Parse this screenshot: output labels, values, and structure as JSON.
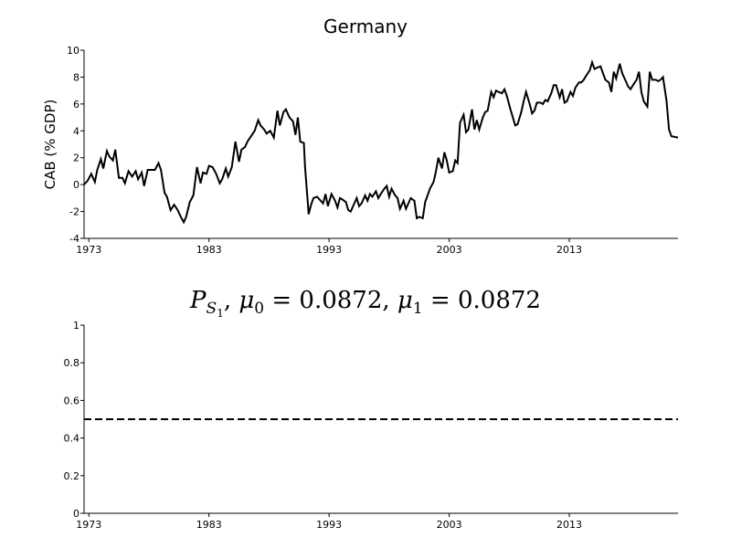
{
  "chart_data": [
    {
      "type": "line",
      "title": "Germany",
      "y_label": "CAB (% GDP)",
      "color": "#000000",
      "linestyle": "solid",
      "xlim": [
        1972.6,
        2022.05
      ],
      "xticks": [
        1973,
        1983,
        1993,
        2003,
        2013
      ],
      "ylim": [
        -4,
        10
      ],
      "yticks": [
        -4,
        -2,
        0,
        2,
        4,
        6,
        8,
        10
      ],
      "x": [
        1972.6,
        1972.9,
        1973.2,
        1973.5,
        1973.7,
        1974.0,
        1974.2,
        1974.5,
        1974.7,
        1975.0,
        1975.2,
        1975.5,
        1975.8,
        1976.0,
        1976.3,
        1976.6,
        1976.9,
        1977.1,
        1977.4,
        1977.6,
        1977.9,
        1978.2,
        1978.5,
        1978.8,
        1979.0,
        1979.3,
        1979.5,
        1979.8,
        1980.1,
        1980.4,
        1980.6,
        1980.9,
        1981.1,
        1981.4,
        1981.7,
        1982.0,
        1982.3,
        1982.5,
        1982.8,
        1983.0,
        1983.3,
        1983.6,
        1983.9,
        1984.1,
        1984.4,
        1984.6,
        1984.9,
        1985.2,
        1985.5,
        1985.7,
        1986.0,
        1986.2,
        1986.5,
        1986.8,
        1987.1,
        1987.3,
        1987.6,
        1987.8,
        1988.1,
        1988.4,
        1988.7,
        1988.9,
        1989.2,
        1989.4,
        1989.7,
        1990.0,
        1990.2,
        1990.4,
        1990.6,
        1990.9,
        1991.0,
        1991.3,
        1991.5,
        1991.7,
        1992.0,
        1992.2,
        1992.5,
        1992.7,
        1992.9,
        1993.2,
        1993.5,
        1993.7,
        1993.9,
        1994.1,
        1994.4,
        1994.6,
        1994.8,
        1995.1,
        1995.3,
        1995.5,
        1995.7,
        1996.0,
        1996.2,
        1996.4,
        1996.6,
        1996.9,
        1997.1,
        1997.3,
        1997.6,
        1997.8,
        1998.0,
        1998.2,
        1998.5,
        1998.7,
        1998.9,
        1999.2,
        1999.4,
        1999.6,
        1999.8,
        2000.1,
        2000.3,
        2000.5,
        2000.8,
        2001.0,
        2001.2,
        2001.4,
        2001.7,
        2001.9,
        2002.1,
        2002.4,
        2002.6,
        2002.8,
        2003.0,
        2003.3,
        2003.5,
        2003.7,
        2003.9,
        2004.2,
        2004.4,
        2004.6,
        2004.9,
        2005.1,
        2005.3,
        2005.5,
        2005.8,
        2006.0,
        2006.2,
        2006.5,
        2006.7,
        2006.9,
        2007.1,
        2007.4,
        2007.6,
        2007.8,
        2008.1,
        2008.3,
        2008.5,
        2008.7,
        2009.0,
        2009.2,
        2009.4,
        2009.7,
        2009.9,
        2010.1,
        2010.3,
        2010.6,
        2010.8,
        2011.0,
        2011.2,
        2011.5,
        2011.7,
        2011.9,
        2012.2,
        2012.4,
        2012.6,
        2012.8,
        2013.1,
        2013.3,
        2013.5,
        2013.8,
        2014.0,
        2014.2,
        2014.4,
        2014.7,
        2014.9,
        2015.1,
        2015.3,
        2015.6,
        2015.8,
        2016.0,
        2016.3,
        2016.5,
        2016.7,
        2016.9,
        2017.2,
        2017.4,
        2017.6,
        2017.9,
        2018.1,
        2018.3,
        2018.6,
        2018.8,
        2019.0,
        2019.2,
        2019.5,
        2019.7,
        2019.9,
        2020.2,
        2020.4,
        2020.6,
        2020.8,
        2021.1,
        2021.3,
        2021.5,
        2022.05
      ],
      "values": [
        0,
        0.3,
        0.8,
        0.2,
        1.1,
        1.9,
        1.2,
        2.5,
        2.1,
        1.8,
        2.6,
        0.5,
        0.5,
        0.1,
        1.0,
        0.6,
        1.0,
        0.4,
        0.9,
        -0.1,
        1.1,
        1.1,
        1.1,
        1.6,
        1.1,
        -0.6,
        -0.9,
        -1.9,
        -1.5,
        -1.9,
        -2.3,
        -2.8,
        -2.4,
        -1.3,
        -0.8,
        1.3,
        0.1,
        0.9,
        0.8,
        1.4,
        1.3,
        0.8,
        0.1,
        0.4,
        1.2,
        0.6,
        1.3,
        3.2,
        1.7,
        2.6,
        2.8,
        3.2,
        3.6,
        4.0,
        4.8,
        4.4,
        4.1,
        3.8,
        4.0,
        3.5,
        5.5,
        4.4,
        5.4,
        5.6,
        5.0,
        4.7,
        3.7,
        5.0,
        3.2,
        3.1,
        1.3,
        -2.2,
        -1.5,
        -1.0,
        -0.9,
        -1.1,
        -1.4,
        -0.7,
        -1.6,
        -0.7,
        -1.2,
        -1.7,
        -1.0,
        -1.1,
        -1.3,
        -1.9,
        -2.0,
        -1.4,
        -1.0,
        -1.6,
        -1.4,
        -0.8,
        -1.2,
        -0.7,
        -0.9,
        -0.5,
        -1.0,
        -0.7,
        -0.3,
        -0.1,
        -0.9,
        -0.3,
        -0.8,
        -1.0,
        -1.8,
        -1.2,
        -1.8,
        -1.4,
        -1.0,
        -1.2,
        -2.5,
        -2.4,
        -2.5,
        -1.3,
        -0.8,
        -0.3,
        0.2,
        1.0,
        2.0,
        1.2,
        2.4,
        1.8,
        0.9,
        1.0,
        1.8,
        1.6,
        4.6,
        5.2,
        3.9,
        4.1,
        5.6,
        4.1,
        4.8,
        4.1,
        5.0,
        5.4,
        5.5,
        6.9,
        6.5,
        7.0,
        6.9,
        6.8,
        7.1,
        6.6,
        5.6,
        5.0,
        4.4,
        4.5,
        5.4,
        6.2,
        6.9,
        6.0,
        5.3,
        5.5,
        6.1,
        6.1,
        6.0,
        6.3,
        6.2,
        6.8,
        7.4,
        7.4,
        6.5,
        7.1,
        6.1,
        6.2,
        6.9,
        6.6,
        7.2,
        7.6,
        7.6,
        7.8,
        8.1,
        8.5,
        9.1,
        8.6,
        8.7,
        8.8,
        8.3,
        7.8,
        7.6,
        6.9,
        8.4,
        7.9,
        9.0,
        8.3,
        7.9,
        7.3,
        7.1,
        7.4,
        7.8,
        8.4,
        6.9,
        6.2,
        5.8,
        8.4,
        7.8,
        7.8,
        7.7,
        7.8,
        8.0,
        6.2,
        4.1,
        3.6,
        3.5
      ]
    },
    {
      "type": "line",
      "title_parts": [
        "P",
        "S",
        "1",
        ", ",
        "μ",
        "0",
        " = 0.0872, ",
        "μ",
        "1",
        " = 0.0872"
      ],
      "color": "#000000",
      "linestyle": "dashed",
      "xlim": [
        1972.6,
        2022.05
      ],
      "xticks": [
        1973,
        1983,
        1993,
        2003,
        2013
      ],
      "ylim": [
        0,
        1
      ],
      "yticks": [
        0,
        0.2,
        0.4,
        0.6,
        0.8,
        1
      ],
      "x": [
        1972.6,
        2022.05
      ],
      "values": [
        0.5,
        0.5
      ]
    }
  ]
}
